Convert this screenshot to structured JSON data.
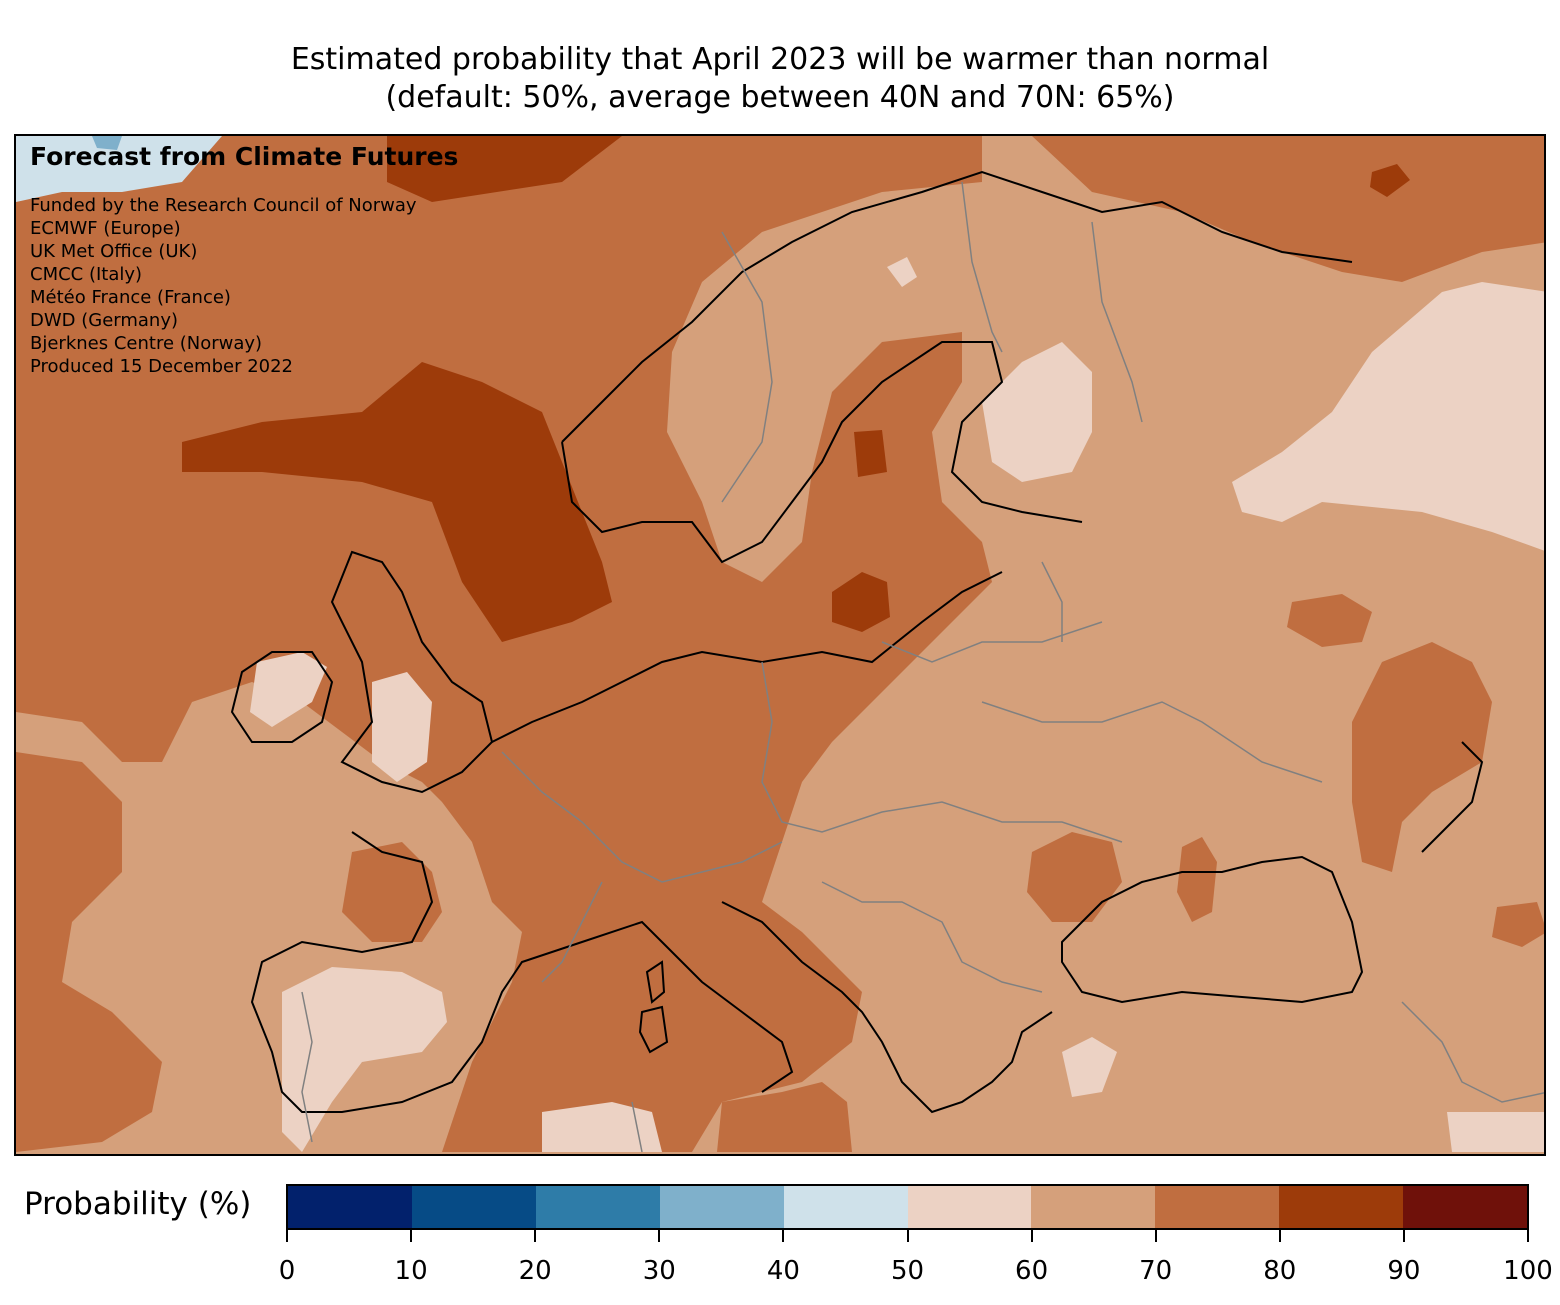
{
  "title": {
    "line1": "Estimated probability that April 2023 will be warmer than normal",
    "line2": "(default: 50%, average between 40N and 70N: 65%)"
  },
  "credits": {
    "heading": "Forecast from Climate Futures",
    "lines": [
      "Funded by the Research Council of Norway",
      "ECMWF (Europe)",
      "UK Met Office (UK)",
      "CMCC (Italy)",
      "Météo France (France)",
      "DWD (Germany)",
      "Bjerknes Centre (Norway)",
      "Produced 15 December 2022"
    ]
  },
  "colorbar": {
    "label": "Probability (%)",
    "ticks": [
      "0",
      "10",
      "20",
      "30",
      "40",
      "50",
      "60",
      "70",
      "80",
      "90",
      "100"
    ],
    "colors": [
      "#02216c",
      "#064b86",
      "#2e7ca8",
      "#7fb0cb",
      "#cfe1ea",
      "#ecd2c4",
      "#d5a07b",
      "#c06e40",
      "#9d3b0a",
      "#6f110a"
    ]
  },
  "map_style": {
    "coastline_color": "#000000",
    "border_color": "#808080",
    "base_fill": "#d5a07b"
  }
}
